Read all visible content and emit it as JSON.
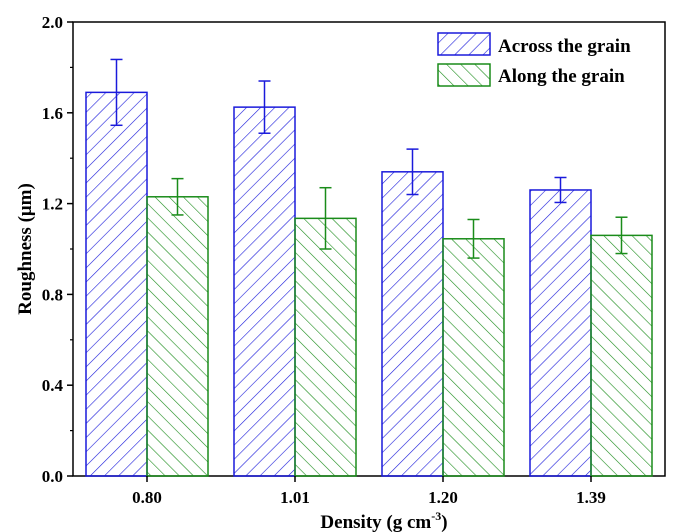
{
  "chart_data": {
    "type": "bar",
    "categories": [
      "0.80",
      "1.01",
      "1.20",
      "1.39"
    ],
    "series": [
      {
        "name": "Across the grain",
        "values": [
          1.69,
          1.625,
          1.34,
          1.26
        ],
        "errors": [
          0.145,
          0.115,
          0.1,
          0.055
        ],
        "color": "#1a1adb",
        "hatch": "forward-diagonal"
      },
      {
        "name": "Along the grain",
        "values": [
          1.23,
          1.135,
          1.045,
          1.06
        ],
        "errors": [
          0.08,
          0.135,
          0.085,
          0.08
        ],
        "color": "#1a8c1a",
        "hatch": "backward-diagonal"
      }
    ],
    "xlabel": {
      "text": "Density (g cm",
      "sup": "-3",
      "tail": ")"
    },
    "ylabel": "Roughness (μm)",
    "ylim": [
      0.0,
      2.0
    ],
    "yticks": [
      "0.0",
      "0.4",
      "0.8",
      "1.2",
      "1.6",
      "2.0"
    ],
    "legend_position": "top-right",
    "grid": false
  }
}
